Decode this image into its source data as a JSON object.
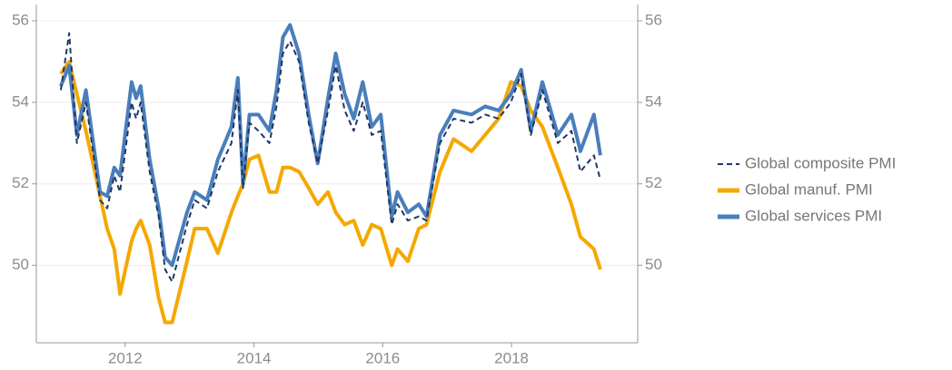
{
  "chart_data": {
    "type": "line",
    "x": [
      2011.0,
      2011.13,
      2011.25,
      2011.39,
      2011.61,
      2011.72,
      2011.83,
      2011.92,
      2012.1,
      2012.17,
      2012.24,
      2012.38,
      2012.52,
      2012.62,
      2012.73,
      2012.96,
      2013.08,
      2013.27,
      2013.44,
      2013.65,
      2013.75,
      2013.83,
      2013.93,
      2014.07,
      2014.24,
      2014.35,
      2014.45,
      2014.56,
      2014.7,
      2014.85,
      2014.99,
      2015.15,
      2015.27,
      2015.41,
      2015.55,
      2015.69,
      2015.83,
      2015.97,
      2016.14,
      2016.23,
      2016.39,
      2016.56,
      2016.68,
      2016.89,
      2017.1,
      2017.38,
      2017.59,
      2017.8,
      2017.99,
      2018.15,
      2018.3,
      2018.48,
      2018.72,
      2018.93,
      2019.07,
      2019.28,
      2019.38
    ],
    "series": [
      {
        "name": "Global composite PMI",
        "color": "#1f3864",
        "linestyle": "dashed",
        "values": [
          54.3,
          55.7,
          53.0,
          54.0,
          51.6,
          51.4,
          52.2,
          51.8,
          54.0,
          53.6,
          54.0,
          52.3,
          51.2,
          49.9,
          49.6,
          51.0,
          51.6,
          51.4,
          52.3,
          53.0,
          54.3,
          51.9,
          53.5,
          53.3,
          53.0,
          53.9,
          55.2,
          55.5,
          55.0,
          53.5,
          52.5,
          53.8,
          54.9,
          53.8,
          53.3,
          54.0,
          53.2,
          53.3,
          51.0,
          51.5,
          51.1,
          51.2,
          51.1,
          53.0,
          53.6,
          53.5,
          53.7,
          53.6,
          54.0,
          54.7,
          53.2,
          54.3,
          53.0,
          53.3,
          52.3,
          52.7,
          52.1
        ]
      },
      {
        "name": "Global manuf. PMI",
        "color": "#f5a800",
        "linestyle": "solid",
        "values": [
          54.7,
          55.0,
          54.2,
          53.3,
          51.7,
          50.9,
          50.4,
          49.3,
          50.6,
          50.9,
          51.1,
          50.5,
          49.2,
          48.6,
          48.6,
          50.1,
          50.9,
          50.9,
          50.3,
          51.3,
          51.7,
          52.0,
          52.6,
          52.7,
          51.8,
          51.8,
          52.4,
          52.4,
          52.3,
          51.9,
          51.5,
          51.8,
          51.3,
          51.0,
          51.1,
          50.5,
          51.0,
          50.9,
          50.0,
          50.4,
          50.1,
          50.9,
          51.0,
          52.3,
          53.1,
          52.8,
          53.2,
          53.6,
          54.5,
          54.4,
          53.8,
          53.4,
          52.4,
          51.5,
          50.7,
          50.4,
          49.9
        ]
      },
      {
        "name": "Global services PMI",
        "color": "#4a7ebb",
        "linestyle": "solid",
        "values": [
          54.4,
          54.9,
          53.2,
          54.3,
          51.8,
          51.7,
          52.4,
          52.2,
          54.5,
          54.1,
          54.4,
          52.6,
          51.4,
          50.2,
          50.0,
          51.3,
          51.8,
          51.6,
          52.6,
          53.4,
          54.6,
          52.0,
          53.7,
          53.7,
          53.3,
          54.3,
          55.6,
          55.9,
          55.2,
          53.7,
          52.5,
          54.1,
          55.2,
          54.2,
          53.6,
          54.5,
          53.4,
          53.7,
          51.2,
          51.8,
          51.3,
          51.5,
          51.2,
          53.2,
          53.8,
          53.7,
          53.9,
          53.8,
          54.2,
          54.8,
          53.3,
          54.5,
          53.2,
          53.7,
          52.8,
          53.7,
          52.7
        ]
      }
    ],
    "xlim": [
      2010.62,
      2019.96
    ],
    "xticks": [
      2012,
      2014,
      2016,
      2018
    ],
    "ylim": [
      48.1,
      56.4
    ],
    "yticks": [
      50,
      52,
      54,
      56
    ],
    "y2lim": [
      48.1,
      56.4
    ],
    "y2ticks": [
      50,
      52,
      54,
      56
    ],
    "grid": true,
    "legend": "right"
  }
}
